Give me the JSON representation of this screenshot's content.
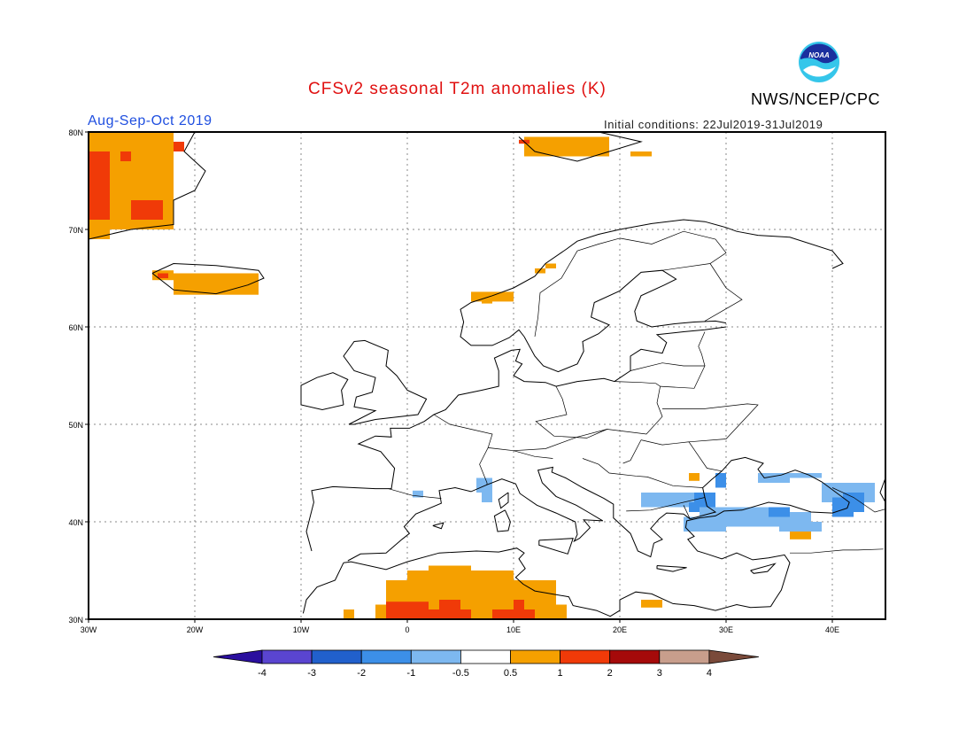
{
  "header": {
    "title": "CFSv2 seasonal T2m anomalies (K)",
    "agency": "NWS/NCEP/CPC",
    "season": "Aug-Sep-Oct 2019",
    "initial_conditions": "Initial conditions: 22Jul2019-31Jul2019",
    "logo_text": "NOAA"
  },
  "map": {
    "lon_range": [
      -30,
      45
    ],
    "lat_range": [
      30,
      80
    ],
    "lat_labels": [
      "30N",
      "40N",
      "50N",
      "60N",
      "70N",
      "80N"
    ],
    "lon_labels": [
      "30W",
      "20W",
      "10W",
      "0",
      "10E",
      "20E",
      "30E",
      "40E"
    ],
    "grid": "dotted"
  },
  "colorbar": {
    "labels": [
      "-4",
      "-3",
      "-2",
      "-1",
      "-0.5",
      "0.5",
      "1",
      "2",
      "3",
      "4"
    ],
    "colors": [
      "#2a0f9e",
      "#5a45d0",
      "#2160cc",
      "#3c8fe8",
      "#7db8f0",
      "#ffffff",
      "#f5a000",
      "#f03a08",
      "#a50a0a",
      "#c89e8c",
      "#7a4a3a"
    ]
  },
  "colors": {
    "land_outline": "#000000",
    "warm_05_1": "#f5a000",
    "warm_1_2": "#f03a08",
    "cool_m05_m1": "#7db8f0",
    "cool_m1_m2": "#3c8fe8"
  }
}
